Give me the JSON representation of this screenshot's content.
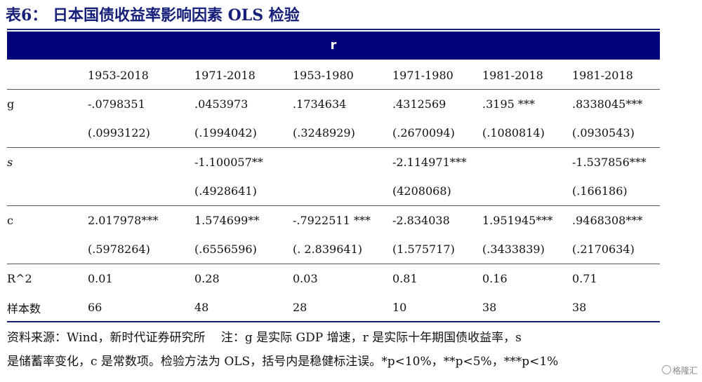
{
  "title": {
    "lead": "表6：",
    "text": " 日本国债收益率影响因素 OLS 检验"
  },
  "header": {
    "variable": "r"
  },
  "columns": [
    "",
    "1953-2018",
    "1971-2018",
    "1953-1980",
    "1971-1980",
    "1981-2018",
    "1981-2018"
  ],
  "rows": {
    "g": {
      "label": "g",
      "coef": [
        "-.0798351",
        ".0453973",
        ".1734634",
        ".4312569",
        ".3195 ***",
        ".8338045***"
      ],
      "se": [
        "(.0993122)",
        "(.1994042)",
        "(.3248929)",
        "(.2670094)",
        "(.1080814)",
        "(.0930543)"
      ]
    },
    "s": {
      "label": "s",
      "coef": [
        "",
        "-1.100057**",
        "",
        "-2.114971***",
        "",
        "-1.537856***"
      ],
      "se": [
        "",
        "(.4928641)",
        "",
        "(4208068)",
        "",
        "(.166186)"
      ]
    },
    "c": {
      "label": "c",
      "coef": [
        "2.017978***",
        "1.574699**",
        "-.7922511 ***",
        "-2.834038",
        "1.951945***",
        ".9468308***"
      ],
      "se": [
        "(.5978264)",
        "(.6556596)",
        "(. 2.839641)",
        "(1.575717)",
        "(.3433839)",
        "(.2170634)"
      ]
    },
    "r2": {
      "label": "R^2",
      "values": [
        "0.01",
        "0.28",
        "0.03",
        "0.81",
        "0.16",
        "0.71"
      ]
    },
    "n": {
      "label": "样本数",
      "values": [
        "66",
        "48",
        "28",
        "10",
        "38",
        "38"
      ]
    }
  },
  "note": {
    "line1": "资料来源：Wind，新时代证券研究所　 注：g 是实际 GDP 增速，r 是实际十年期国债收益率，s",
    "line2": "是储蓄率变化，c 是常数项。检验方法为 OLS，括号内是稳健标注误。*p<10%，**p<5%，***p<1%"
  },
  "watermark": "格隆汇"
}
